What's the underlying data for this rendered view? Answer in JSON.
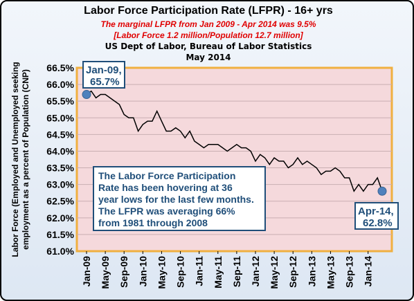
{
  "chart_data": {
    "type": "line",
    "title": "Labor Force Participation Rate (LFPR) - 16+ yrs",
    "subtitle_lines": [
      "The marginal LFPR from Jan 2009 - Apr 2014 was 9.5%",
      "[Labor Force  1.2 million/Population 12.7 million]"
    ],
    "source_lines": [
      "US Dept of Labor, Bureau of Labor Statistics",
      "May 2014"
    ],
    "ylabel_lines": [
      "Labor Force (Employed and Unemployed seeking",
      "employment as a percent of Population (CNP)"
    ],
    "xlabel": "",
    "ylim": [
      61.0,
      66.5
    ],
    "yticks": [
      "61.0%",
      "61.5%",
      "62.0%",
      "62.5%",
      "63.0%",
      "63.5%",
      "64.0%",
      "64.5%",
      "65.0%",
      "65.5%",
      "66.0%",
      "66.5%"
    ],
    "xtick_labels": [
      "Jan-09",
      "May-09",
      "Sep-09",
      "Jan-10",
      "May-10",
      "Sep-10",
      "Jan-11",
      "May-11",
      "Sep-11",
      "Jan-12",
      "May-12",
      "Sep-12",
      "Jan-13",
      "May-13",
      "Sep-13",
      "Jan-14"
    ],
    "grid": "horizontal",
    "series": [
      {
        "color": "#000000",
        "x": [
          "2009-01",
          "2009-02",
          "2009-03",
          "2009-04",
          "2009-05",
          "2009-06",
          "2009-07",
          "2009-08",
          "2009-09",
          "2009-10",
          "2009-11",
          "2009-12",
          "2010-01",
          "2010-02",
          "2010-03",
          "2010-04",
          "2010-05",
          "2010-06",
          "2010-07",
          "2010-08",
          "2010-09",
          "2010-10",
          "2010-11",
          "2010-12",
          "2011-01",
          "2011-02",
          "2011-03",
          "2011-04",
          "2011-05",
          "2011-06",
          "2011-07",
          "2011-08",
          "2011-09",
          "2011-10",
          "2011-11",
          "2011-12",
          "2012-01",
          "2012-02",
          "2012-03",
          "2012-04",
          "2012-05",
          "2012-06",
          "2012-07",
          "2012-08",
          "2012-09",
          "2012-10",
          "2012-11",
          "2012-12",
          "2013-01",
          "2013-02",
          "2013-03",
          "2013-04",
          "2013-05",
          "2013-06",
          "2013-07",
          "2013-08",
          "2013-09",
          "2013-10",
          "2013-11",
          "2013-12",
          "2014-01",
          "2014-02",
          "2014-03",
          "2014-04"
        ],
        "values": [
          65.7,
          65.8,
          65.6,
          65.7,
          65.7,
          65.6,
          65.5,
          65.4,
          65.1,
          65.0,
          65.0,
          64.6,
          64.8,
          64.9,
          64.9,
          65.2,
          64.9,
          64.6,
          64.6,
          64.7,
          64.6,
          64.4,
          64.6,
          64.3,
          64.2,
          64.1,
          64.2,
          64.2,
          64.2,
          64.1,
          64.0,
          64.1,
          64.2,
          64.1,
          64.1,
          64.0,
          63.7,
          63.9,
          63.8,
          63.6,
          63.8,
          63.7,
          63.7,
          63.5,
          63.6,
          63.8,
          63.6,
          63.7,
          63.6,
          63.5,
          63.3,
          63.4,
          63.4,
          63.5,
          63.4,
          63.2,
          63.2,
          62.8,
          63.0,
          62.8,
          63.0,
          63.0,
          63.2,
          62.8
        ]
      }
    ],
    "annotations": {
      "start": {
        "label_line1": "Jan-09,",
        "label_line2": "65.7%",
        "x": "2009-01",
        "value": 65.7
      },
      "end": {
        "label_line1": "Apr-14,",
        "label_line2": "62.8%",
        "x": "2014-04",
        "value": 62.8
      },
      "note_lines": [
        "The  Labor Force Participation",
        "Rate has been hovering at 36",
        "year lows for the last few months.",
        "The LFPR was averaging 66%",
        "from 1981 through 2008"
      ]
    },
    "colors": {
      "plot_bg": "#f5d9dc",
      "plot_border": "#f0b040",
      "line": "#000000",
      "marker": "#4f81bd",
      "callout_text": "#1f4e79",
      "callout_border": "#1f4e79",
      "subtitle": "#e00000"
    }
  }
}
